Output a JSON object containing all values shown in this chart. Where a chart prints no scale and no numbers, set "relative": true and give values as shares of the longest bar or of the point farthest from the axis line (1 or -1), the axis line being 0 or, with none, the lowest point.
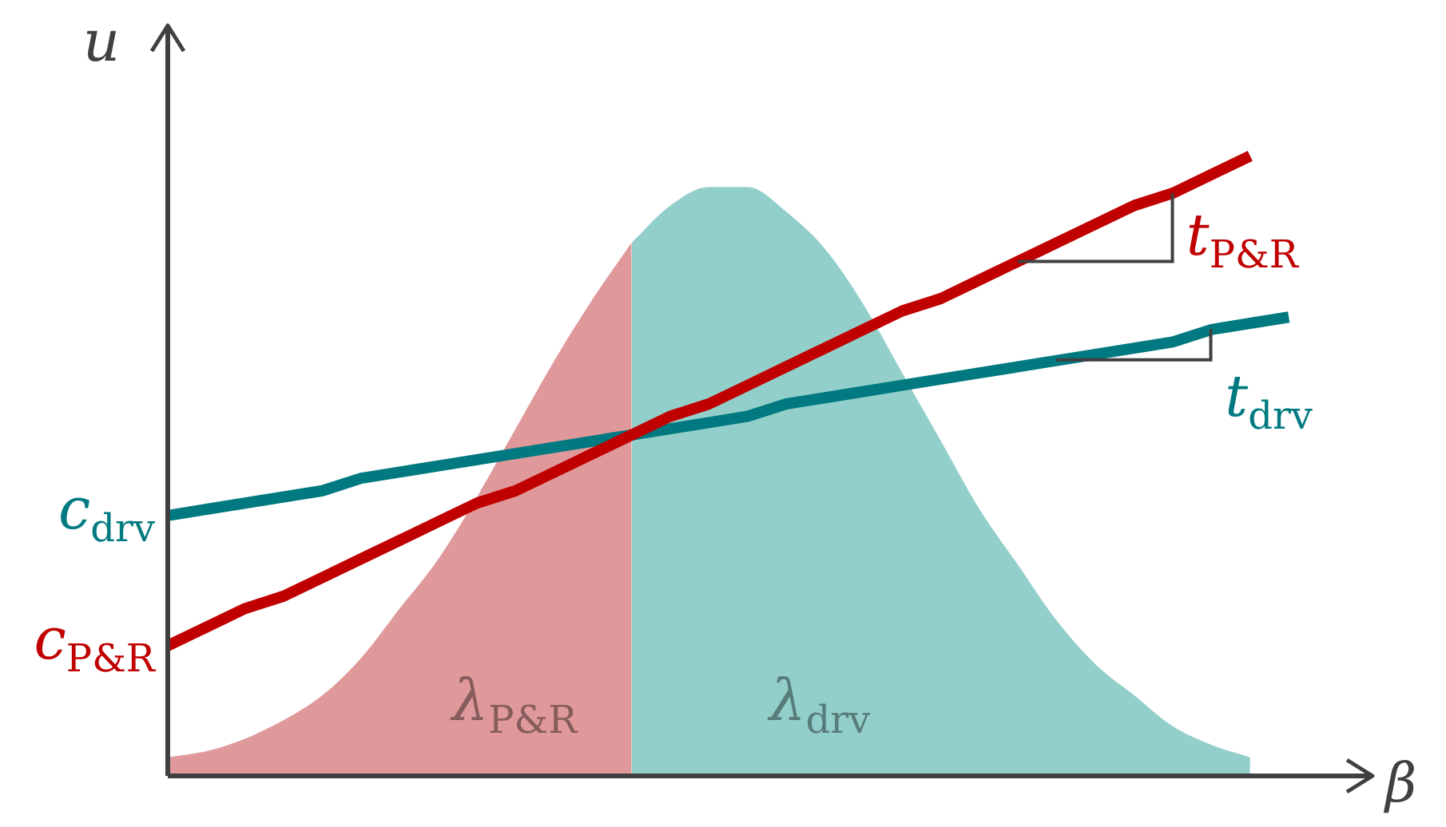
{
  "chart_data": {
    "type": "line",
    "relative": true,
    "xlabel": "β",
    "ylabel": "u",
    "categories": [
      null,
      null,
      null,
      null,
      null,
      null,
      null,
      null,
      null,
      null,
      null,
      null,
      null,
      null,
      null,
      null,
      null,
      null,
      null,
      null,
      null,
      null,
      null,
      null,
      null,
      null,
      null,
      null,
      null,
      null,
      null,
      null
    ],
    "series": [
      {
        "name": "λ$_{P&R}$",
        "type": "area",
        "color": "#e0999a",
        "values": [
          0.03,
          0.04,
          0.06,
          0.09,
          0.13,
          0.19,
          0.27,
          0.35,
          0.45,
          0.56,
          0.67,
          0.77,
          0.86,
          null,
          null,
          null,
          null,
          null,
          null,
          null,
          null,
          null,
          null,
          null,
          null,
          null,
          null,
          null,
          null,
          null,
          null,
          null
        ]
      },
      {
        "name": "λ$_{drv}$",
        "type": "area",
        "color": "#93cfca",
        "values": [
          null,
          null,
          null,
          null,
          null,
          null,
          null,
          null,
          null,
          null,
          null,
          null,
          0.86,
          0.92,
          0.95,
          0.95,
          0.91,
          0.85,
          0.76,
          0.65,
          0.54,
          0.43,
          0.34,
          0.25,
          0.18,
          0.13,
          0.08,
          0.05,
          0.03,
          null,
          null,
          null
        ]
      },
      {
        "name": "t$_{P&R}$",
        "type": "line",
        "color": "#c00000",
        "values": [
          0.21,
          0.24,
          0.27,
          0.29,
          0.32,
          0.35,
          0.38,
          0.41,
          0.44,
          0.46,
          0.49,
          0.52,
          0.55,
          0.58,
          0.6,
          0.63,
          0.66,
          0.69,
          0.72,
          0.75,
          0.77,
          0.8,
          0.83,
          0.86,
          0.89,
          0.92,
          0.94,
          0.97,
          1.0,
          null,
          null,
          null
        ]
      },
      {
        "name": "t$_{drv}$",
        "type": "line",
        "color": "#007a80",
        "values": [
          0.42,
          0.43,
          0.44,
          0.45,
          0.46,
          0.48,
          0.49,
          0.5,
          0.51,
          0.52,
          0.53,
          0.54,
          0.55,
          0.56,
          0.57,
          0.58,
          0.6,
          0.61,
          0.62,
          0.63,
          0.64,
          0.65,
          0.66,
          0.67,
          0.68,
          0.69,
          0.7,
          0.72,
          0.73,
          0.74,
          null,
          null
        ]
      }
    ],
    "annotations": [
      "c$_{P&R}$",
      "c$_{drv}$"
    ]
  }
}
